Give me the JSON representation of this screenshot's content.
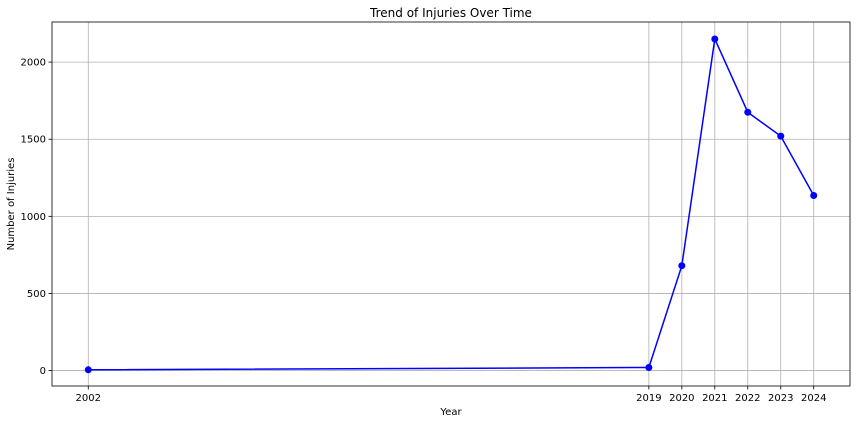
{
  "chart_data": {
    "type": "line",
    "title": "Trend of Injuries Over Time",
    "xlabel": "Year",
    "ylabel": "Number of Injuries",
    "x": [
      2002,
      2019,
      2020,
      2021,
      2022,
      2023,
      2024
    ],
    "x_tick_labels": [
      "2002",
      "2019",
      "2020",
      "2021",
      "2022",
      "2023",
      "2024"
    ],
    "y_ticks": [
      0,
      500,
      1000,
      1500,
      2000
    ],
    "y_tick_labels": [
      "0",
      "500",
      "1000",
      "1500",
      "2000"
    ],
    "xlim": [
      2000.9,
      2025.1
    ],
    "ylim": [
      -100,
      2260
    ],
    "grid": true,
    "series": [
      {
        "values": [
          5,
          20,
          680,
          2150,
          1675,
          1520,
          1135
        ],
        "color": "#0000ff",
        "marker": "circle"
      }
    ]
  }
}
